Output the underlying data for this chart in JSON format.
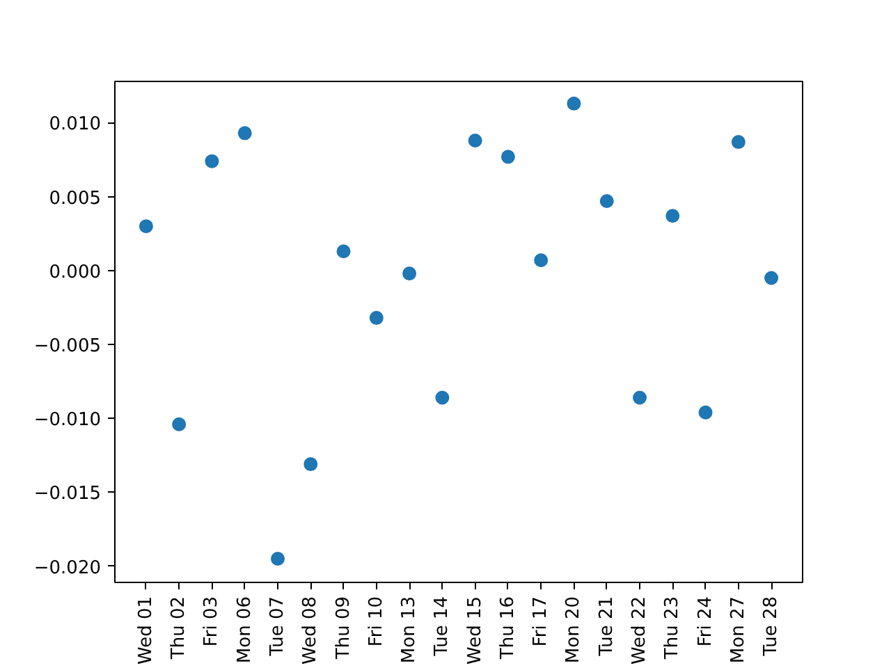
{
  "chart_data": {
    "type": "scatter",
    "categories": [
      "Wed 01",
      "Thu 02",
      "Fri 03",
      "Mon 06",
      "Tue 07",
      "Wed 08",
      "Thu 09",
      "Fri 10",
      "Mon 13",
      "Tue 14",
      "Wed 15",
      "Thu 16",
      "Fri 17",
      "Mon 20",
      "Tue 21",
      "Wed 22",
      "Thu 23",
      "Fri 24",
      "Mon 27",
      "Tue 28"
    ],
    "values": [
      0.003,
      -0.0104,
      0.0074,
      0.0093,
      -0.0195,
      -0.0131,
      0.0013,
      -0.0032,
      -0.0002,
      -0.0086,
      0.0088,
      0.0077,
      0.0007,
      0.0113,
      0.0047,
      -0.0086,
      0.0037,
      -0.0096,
      0.0087,
      -0.0005
    ],
    "color": "#1f77b4",
    "marker": "circle",
    "grid": false,
    "ylim": [
      -0.0211,
      0.0128
    ],
    "yticks": [
      {
        "value": -0.02,
        "label": "−0.020"
      },
      {
        "value": -0.015,
        "label": "−0.015"
      },
      {
        "value": -0.01,
        "label": "−0.010"
      },
      {
        "value": -0.005,
        "label": "−0.005"
      },
      {
        "value": 0,
        "label": "0.000"
      },
      {
        "value": 0.005,
        "label": "0.005"
      },
      {
        "value": 0.01,
        "label": "0.010"
      }
    ]
  }
}
